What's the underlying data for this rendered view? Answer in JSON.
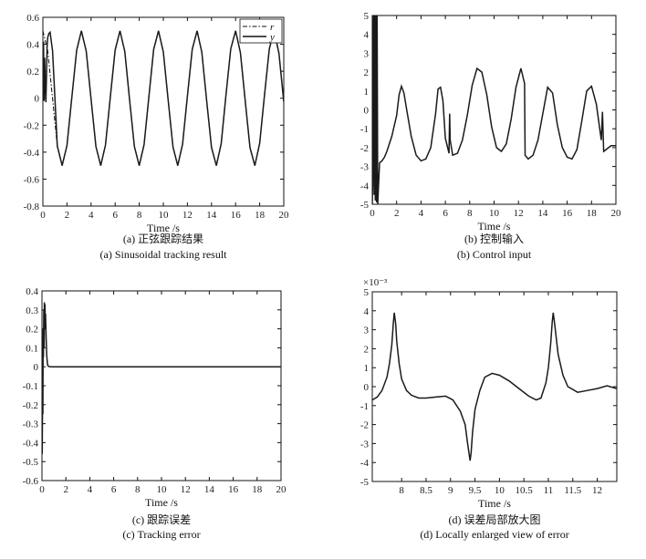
{
  "chart_data": [
    {
      "id": "a",
      "type": "line",
      "xlabel": "Time /s",
      "caption_cn": "(a) 正弦跟踪结果",
      "caption_en": "(a) Sinusoidal tracking result",
      "xlim": [
        0,
        20
      ],
      "ylim": [
        -0.8,
        0.6
      ],
      "xticks": [
        0,
        2,
        4,
        6,
        8,
        10,
        12,
        14,
        16,
        18,
        20
      ],
      "yticks": [
        -0.8,
        -0.6,
        -0.4,
        -0.2,
        0,
        0.2,
        0.4,
        0.6
      ],
      "legend": [
        "r",
        "y"
      ],
      "legend_position": "top-right",
      "series": [
        {
          "name": "r",
          "style": "dash-dot",
          "x": [
            0,
            0.4,
            0.8,
            1.2,
            1.6,
            2.0,
            2.4,
            2.8,
            3.2,
            3.6,
            4.0,
            4.4,
            4.8,
            5.2,
            5.6,
            6.0,
            6.4,
            6.8,
            7.2,
            7.6,
            8.0,
            8.4,
            8.8,
            9.2,
            9.6,
            10.0,
            10.4,
            10.8,
            11.2,
            11.6,
            12.0,
            12.4,
            12.8,
            13.2,
            13.6,
            14.0,
            14.4,
            14.8,
            15.2,
            15.6,
            16.0,
            16.4,
            16.8,
            17.2,
            17.6,
            18.0,
            18.4,
            18.8,
            19.2,
            19.6,
            20.0
          ],
          "y": [
            0.5,
            0.352,
            -0.002,
            -0.354,
            -0.5,
            -0.35,
            0.004,
            0.355,
            0.5,
            0.349,
            -0.006,
            -0.357,
            -0.5,
            -0.347,
            0.008,
            0.358,
            0.5,
            0.346,
            -0.01,
            -0.359,
            -0.5,
            -0.344,
            0.012,
            0.361,
            0.5,
            0.343,
            -0.014,
            -0.362,
            -0.5,
            -0.341,
            0.016,
            0.363,
            0.5,
            0.34,
            -0.018,
            -0.365,
            -0.5,
            -0.338,
            0.02,
            0.366,
            0.5,
            0.337,
            -0.022,
            -0.367,
            -0.5,
            -0.335,
            0.024,
            0.368,
            0.5,
            0.334,
            -0.026
          ]
        },
        {
          "name": "y",
          "style": "solid",
          "x": [
            0,
            0.05,
            0.1,
            0.15,
            0.2,
            0.25,
            0.3,
            0.35,
            0.4,
            0.5,
            0.6,
            0.8,
            1.2,
            1.6,
            2.0,
            2.4,
            2.8,
            3.2,
            3.6,
            4.0,
            4.4,
            4.8,
            5.2,
            5.6,
            6.0,
            6.4,
            6.8,
            7.2,
            7.6,
            8.0,
            8.4,
            8.8,
            9.2,
            9.6,
            10.0,
            10.4,
            10.8,
            11.2,
            11.6,
            12.0,
            12.4,
            12.8,
            13.2,
            13.6,
            14.0,
            14.4,
            14.8,
            15.2,
            15.6,
            16.0,
            16.4,
            16.8,
            17.2,
            17.6,
            18.0,
            18.4,
            18.8,
            19.2,
            19.6,
            20.0
          ],
          "y": [
            0.05,
            0.42,
            -0.02,
            0.3,
            0.1,
            -0.03,
            0.18,
            0.38,
            0.45,
            0.48,
            0.49,
            0.352,
            -0.354,
            -0.5,
            -0.35,
            0.004,
            0.355,
            0.5,
            0.349,
            -0.006,
            -0.357,
            -0.5,
            -0.347,
            0.008,
            0.358,
            0.5,
            0.346,
            -0.01,
            -0.359,
            -0.5,
            -0.344,
            0.012,
            0.361,
            0.5,
            0.343,
            -0.014,
            -0.362,
            -0.5,
            -0.341,
            0.016,
            0.363,
            0.5,
            0.34,
            -0.018,
            -0.365,
            -0.5,
            -0.338,
            0.02,
            0.366,
            0.5,
            0.337,
            -0.022,
            -0.367,
            -0.5,
            -0.335,
            0.024,
            0.368,
            0.5,
            0.334,
            -0.026
          ]
        }
      ]
    },
    {
      "id": "b",
      "type": "line",
      "xlabel": "Time /s",
      "caption_cn": "(b) 控制输入",
      "caption_en": "(b) Control input",
      "xlim": [
        0,
        20
      ],
      "ylim": [
        -5,
        5
      ],
      "xticks": [
        0,
        2,
        4,
        6,
        8,
        10,
        12,
        14,
        16,
        18,
        20
      ],
      "xtick_labels": [
        "0",
        "2",
        "4",
        "6",
        "8",
        "10",
        "12",
        "14",
        "16",
        "18",
        "20"
      ],
      "yticks": [
        -5,
        -4,
        -3,
        -2,
        -1,
        0,
        1,
        2,
        3,
        4,
        5
      ],
      "series": [
        {
          "name": "",
          "style": "solid",
          "x": [
            0,
            0.05,
            0.1,
            0.15,
            0.2,
            0.25,
            0.3,
            0.35,
            0.4,
            0.45,
            0.5,
            0.6,
            0.8,
            1.0,
            1.2,
            1.6,
            2.0,
            2.2,
            2.4,
            2.6,
            2.8,
            3.2,
            3.6,
            4.0,
            4.4,
            4.8,
            5.2,
            5.4,
            5.6,
            5.8,
            6.0,
            6.3,
            6.35,
            6.4,
            6.6,
            7.0,
            7.4,
            7.8,
            8.2,
            8.6,
            9.0,
            9.4,
            9.8,
            10.2,
            10.6,
            11.0,
            11.4,
            11.8,
            12.2,
            12.5,
            12.55,
            12.8,
            13.2,
            13.6,
            14.0,
            14.4,
            14.8,
            15.2,
            15.6,
            16.0,
            16.4,
            16.8,
            17.2,
            17.6,
            18.0,
            18.4,
            18.8,
            18.9,
            19.0,
            19.2,
            19.4,
            19.6,
            20.0
          ],
          "y": [
            -5,
            -3,
            5,
            -4.5,
            5,
            -4.8,
            5,
            -4.9,
            5,
            -5,
            -4.2,
            -2.8,
            -2.7,
            -2.5,
            -2.2,
            -1.4,
            -0.3,
            0.8,
            1.25,
            0.9,
            0.1,
            -1.4,
            -2.4,
            -2.7,
            -2.6,
            -2.0,
            -0.2,
            1.1,
            1.2,
            0.5,
            -1.5,
            -2.3,
            -0.2,
            -1.6,
            -2.4,
            -2.3,
            -1.6,
            -0.3,
            1.3,
            2.2,
            2.0,
            0.8,
            -0.9,
            -2.0,
            -2.2,
            -1.8,
            -0.5,
            1.2,
            2.2,
            1.4,
            -2.4,
            -2.6,
            -2.4,
            -1.6,
            -0.2,
            1.2,
            0.9,
            -0.8,
            -2.0,
            -2.5,
            -2.6,
            -2.1,
            -0.6,
            1.0,
            1.25,
            0.3,
            -1.6,
            -0.1,
            -2.2,
            -2.1,
            -2.0,
            -1.9,
            -1.9
          ]
        }
      ]
    },
    {
      "id": "c",
      "type": "line",
      "xlabel": "Time /s",
      "caption_cn": "(c) 跟踪误差",
      "caption_en": "(c) Tracking error",
      "xlim": [
        0,
        20
      ],
      "ylim": [
        -0.6,
        0.4
      ],
      "xticks": [
        0,
        2,
        4,
        6,
        8,
        10,
        12,
        14,
        16,
        18,
        20
      ],
      "yticks": [
        -0.6,
        -0.5,
        -0.4,
        -0.3,
        -0.2,
        -0.1,
        0,
        0.1,
        0.2,
        0.3,
        0.4
      ],
      "series": [
        {
          "name": "",
          "style": "solid",
          "x": [
            0,
            0.02,
            0.05,
            0.08,
            0.1,
            0.12,
            0.15,
            0.18,
            0.2,
            0.22,
            0.25,
            0.28,
            0.3,
            0.35,
            0.4,
            0.45,
            0.5,
            0.6,
            0.8,
            1.0,
            20
          ],
          "y": [
            0,
            -0.46,
            -0.1,
            -0.25,
            0.2,
            0.05,
            0.3,
            0.1,
            0.34,
            0.25,
            0.33,
            0.2,
            0.28,
            0.15,
            0.06,
            0.02,
            0.005,
            0.001,
            0,
            0,
            0
          ]
        }
      ]
    },
    {
      "id": "d",
      "type": "line",
      "xlabel": "Time /s",
      "caption_cn": "(d) 误差局部放大图",
      "caption_en": "(d) Locally enlarged view of error",
      "scale_label": "×10⁻³",
      "xlim": [
        7.4,
        12.4
      ],
      "ylim": [
        -5,
        5
      ],
      "xticks": [
        8,
        8.5,
        9,
        9.5,
        10,
        10.5,
        11,
        11.5,
        12
      ],
      "yticks": [
        -5,
        -4,
        -3,
        -2,
        -1,
        0,
        1,
        2,
        3,
        4,
        5
      ],
      "series": [
        {
          "name": "",
          "style": "solid",
          "x": [
            7.4,
            7.5,
            7.6,
            7.7,
            7.75,
            7.8,
            7.83,
            7.85,
            7.88,
            7.9,
            7.95,
            8.0,
            8.1,
            8.2,
            8.35,
            8.5,
            8.7,
            8.9,
            9.05,
            9.2,
            9.3,
            9.35,
            9.4,
            9.42,
            9.45,
            9.5,
            9.6,
            9.7,
            9.85,
            10.0,
            10.2,
            10.4,
            10.6,
            10.75,
            10.85,
            10.95,
            11.0,
            11.05,
            11.08,
            11.1,
            11.13,
            11.2,
            11.3,
            11.4,
            11.6,
            11.8,
            12.0,
            12.2,
            12.4
          ],
          "y": [
            -0.7,
            -0.55,
            -0.2,
            0.5,
            1.2,
            2.2,
            3.3,
            3.9,
            3.3,
            2.4,
            1.2,
            0.4,
            -0.2,
            -0.45,
            -0.6,
            -0.6,
            -0.55,
            -0.5,
            -0.7,
            -1.3,
            -2.0,
            -3.0,
            -3.9,
            -3.5,
            -2.4,
            -1.2,
            -0.2,
            0.5,
            0.7,
            0.6,
            0.3,
            -0.1,
            -0.5,
            -0.7,
            -0.6,
            0.2,
            1.0,
            2.3,
            3.4,
            3.9,
            3.3,
            1.7,
            0.6,
            0,
            -0.3,
            -0.2,
            -0.1,
            0.05,
            -0.1
          ]
        }
      ]
    }
  ]
}
